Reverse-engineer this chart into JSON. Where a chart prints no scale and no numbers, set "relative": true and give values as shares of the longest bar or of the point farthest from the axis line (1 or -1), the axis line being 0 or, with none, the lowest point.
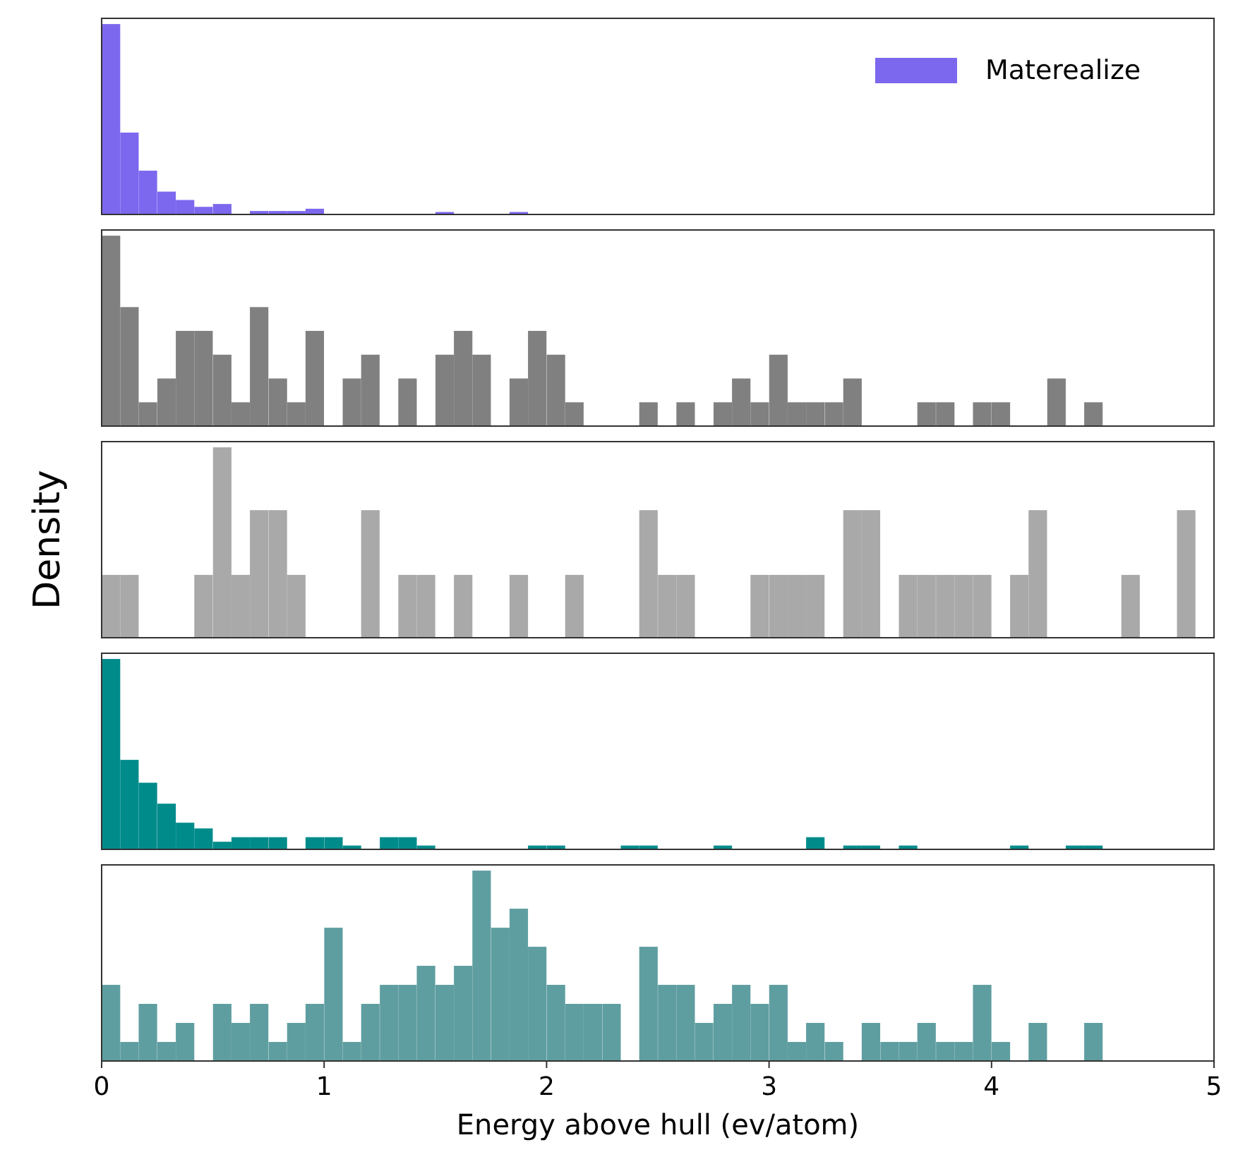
{
  "chart_data": [
    {
      "type": "bar",
      "relative": true,
      "xlim": [
        0,
        5
      ],
      "tick_labels": false,
      "legend": "top right",
      "x": [
        0.042,
        0.125,
        0.208,
        0.292,
        0.375,
        0.458,
        0.542,
        0.625,
        0.708,
        0.792,
        0.875,
        0.958,
        1.042,
        1.125,
        1.208,
        1.292,
        1.375,
        1.458,
        1.542,
        1.625,
        1.708,
        1.792,
        1.875
      ],
      "series": [
        {
          "name": "Materealize",
          "color": "#7b68ee",
          "values": [
            1,
            0.43,
            0.23,
            0.12,
            0.076,
            0.04,
            0.055,
            0,
            0.018,
            0.018,
            0.018,
            0.03,
            0,
            0,
            0,
            0,
            0,
            0,
            0.013,
            0,
            0,
            0,
            0.013
          ]
        }
      ]
    },
    {
      "type": "bar",
      "relative": true,
      "xlim": [
        0,
        5
      ],
      "tick_labels": false,
      "x": [
        0.042,
        0.125,
        0.208,
        0.292,
        0.375,
        0.458,
        0.542,
        0.625,
        0.708,
        0.792,
        0.875,
        0.958,
        1.042,
        1.125,
        1.208,
        1.292,
        1.375,
        1.458,
        1.542,
        1.625,
        1.708,
        1.792,
        1.875,
        1.958,
        2.042,
        2.125,
        2.208,
        2.292,
        2.375,
        2.458,
        2.542,
        2.625,
        2.708,
        2.792,
        2.875,
        2.958,
        3.042,
        3.125,
        3.208,
        3.292,
        3.375,
        3.458,
        3.542,
        3.625,
        3.708,
        3.792,
        3.875,
        3.958,
        4.042,
        4.125,
        4.208,
        4.292,
        4.375,
        4.458
      ],
      "color": "#808080",
      "values": [
        1,
        0.625,
        0.125,
        0.25,
        0.5,
        0.5,
        0.375,
        0.125,
        0.625,
        0.25,
        0.125,
        0.5,
        0,
        0.25,
        0.375,
        0,
        0.25,
        0,
        0.375,
        0.5,
        0.375,
        0,
        0.25,
        0.5,
        0.375,
        0.125,
        0,
        0,
        0,
        0.125,
        0,
        0.125,
        0,
        0.125,
        0.25,
        0.125,
        0.375,
        0.125,
        0.125,
        0.125,
        0.25,
        0,
        0,
        0,
        0.125,
        0.125,
        0,
        0.125,
        0.125,
        0,
        0,
        0.25,
        0,
        0.125
      ]
    },
    {
      "type": "bar",
      "relative": true,
      "xlim": [
        0,
        5
      ],
      "tick_labels": false,
      "ylabel": "Density",
      "x": [
        0.042,
        0.125,
        0.208,
        0.292,
        0.375,
        0.458,
        0.542,
        0.625,
        0.708,
        0.792,
        0.875,
        0.958,
        1.042,
        1.125,
        1.208,
        1.292,
        1.375,
        1.458,
        1.542,
        1.625,
        1.708,
        1.792,
        1.875,
        1.958,
        2.042,
        2.125,
        2.208,
        2.292,
        2.375,
        2.458,
        2.542,
        2.625,
        2.708,
        2.792,
        2.875,
        2.958,
        3.042,
        3.125,
        3.208,
        3.292,
        3.375,
        3.458,
        3.542,
        3.625,
        3.708,
        3.792,
        3.875,
        3.958,
        4.042,
        4.125,
        4.208,
        4.292,
        4.375,
        4.458,
        4.542,
        4.625,
        4.708,
        4.792,
        4.875
      ],
      "color": "#a9a9a9",
      "values": [
        0.33,
        0.33,
        0,
        0,
        0,
        0.33,
        1,
        0.33,
        0.67,
        0.67,
        0.33,
        0,
        0,
        0,
        0.67,
        0,
        0.33,
        0.33,
        0,
        0.33,
        0,
        0,
        0.33,
        0,
        0,
        0.33,
        0,
        0,
        0,
        0.67,
        0.33,
        0.33,
        0,
        0,
        0,
        0.33,
        0.33,
        0.33,
        0.33,
        0,
        0.67,
        0.67,
        0,
        0.33,
        0.33,
        0.33,
        0.33,
        0.33,
        0,
        0.33,
        0.67,
        0,
        0,
        0,
        0,
        0.33,
        0,
        0,
        0.67
      ]
    },
    {
      "type": "bar",
      "relative": true,
      "xlim": [
        0,
        5
      ],
      "tick_labels": false,
      "x": [
        0.042,
        0.125,
        0.208,
        0.292,
        0.375,
        0.458,
        0.542,
        0.625,
        0.708,
        0.792,
        0.875,
        0.958,
        1.042,
        1.125,
        1.208,
        1.292,
        1.375,
        1.458,
        1.542,
        1.625,
        1.708,
        1.792,
        1.875,
        1.958,
        2.042,
        2.125,
        2.208,
        2.292,
        2.375,
        2.458,
        2.542,
        2.625,
        2.708,
        2.792,
        2.875,
        2.958,
        3.042,
        3.125,
        3.208,
        3.292,
        3.375,
        3.458,
        3.542,
        3.625,
        3.708,
        3.792,
        3.875,
        3.958,
        4.042,
        4.125,
        4.208,
        4.292,
        4.375,
        4.458
      ],
      "color": "#008b8b",
      "values": [
        1,
        0.47,
        0.35,
        0.24,
        0.14,
        0.11,
        0.04,
        0.064,
        0.064,
        0.064,
        0,
        0.064,
        0.064,
        0.02,
        0,
        0.064,
        0.064,
        0.02,
        0,
        0,
        0,
        0,
        0,
        0.02,
        0.02,
        0,
        0,
        0,
        0.02,
        0.02,
        0,
        0,
        0,
        0.02,
        0,
        0,
        0,
        0,
        0.064,
        0,
        0.02,
        0.02,
        0,
        0.02,
        0,
        0,
        0,
        0,
        0,
        0.02,
        0,
        0,
        0.02,
        0.02
      ]
    },
    {
      "type": "bar",
      "relative": true,
      "xlim": [
        0,
        5
      ],
      "xticks": [
        0,
        1,
        2,
        3,
        4,
        5
      ],
      "tick_labels": "x",
      "xlabel": "Energy above hull (ev/atom)",
      "x": [
        0.042,
        0.125,
        0.208,
        0.292,
        0.375,
        0.458,
        0.542,
        0.625,
        0.708,
        0.792,
        0.875,
        0.958,
        1.042,
        1.125,
        1.208,
        1.292,
        1.375,
        1.458,
        1.542,
        1.625,
        1.708,
        1.792,
        1.875,
        1.958,
        2.042,
        2.125,
        2.208,
        2.292,
        2.375,
        2.458,
        2.542,
        2.625,
        2.708,
        2.792,
        2.875,
        2.958,
        3.042,
        3.125,
        3.208,
        3.292,
        3.375,
        3.458,
        3.542,
        3.625,
        3.708,
        3.792,
        3.875,
        3.958,
        4.042,
        4.125,
        4.208,
        4.292,
        4.375,
        4.458
      ],
      "color": "#5f9ea0",
      "values": [
        0.4,
        0.1,
        0.3,
        0.1,
        0.2,
        0,
        0.3,
        0.2,
        0.3,
        0.1,
        0.2,
        0.3,
        0.7,
        0.1,
        0.3,
        0.4,
        0.4,
        0.5,
        0.4,
        0.5,
        1,
        0.7,
        0.8,
        0.6,
        0.4,
        0.3,
        0.3,
        0.3,
        0,
        0.6,
        0.4,
        0.4,
        0.2,
        0.3,
        0.4,
        0.3,
        0.4,
        0.1,
        0.2,
        0.1,
        0,
        0.2,
        0.1,
        0.1,
        0.2,
        0.1,
        0.1,
        0.4,
        0.1,
        0,
        0.2,
        0,
        0,
        0.2
      ]
    }
  ]
}
